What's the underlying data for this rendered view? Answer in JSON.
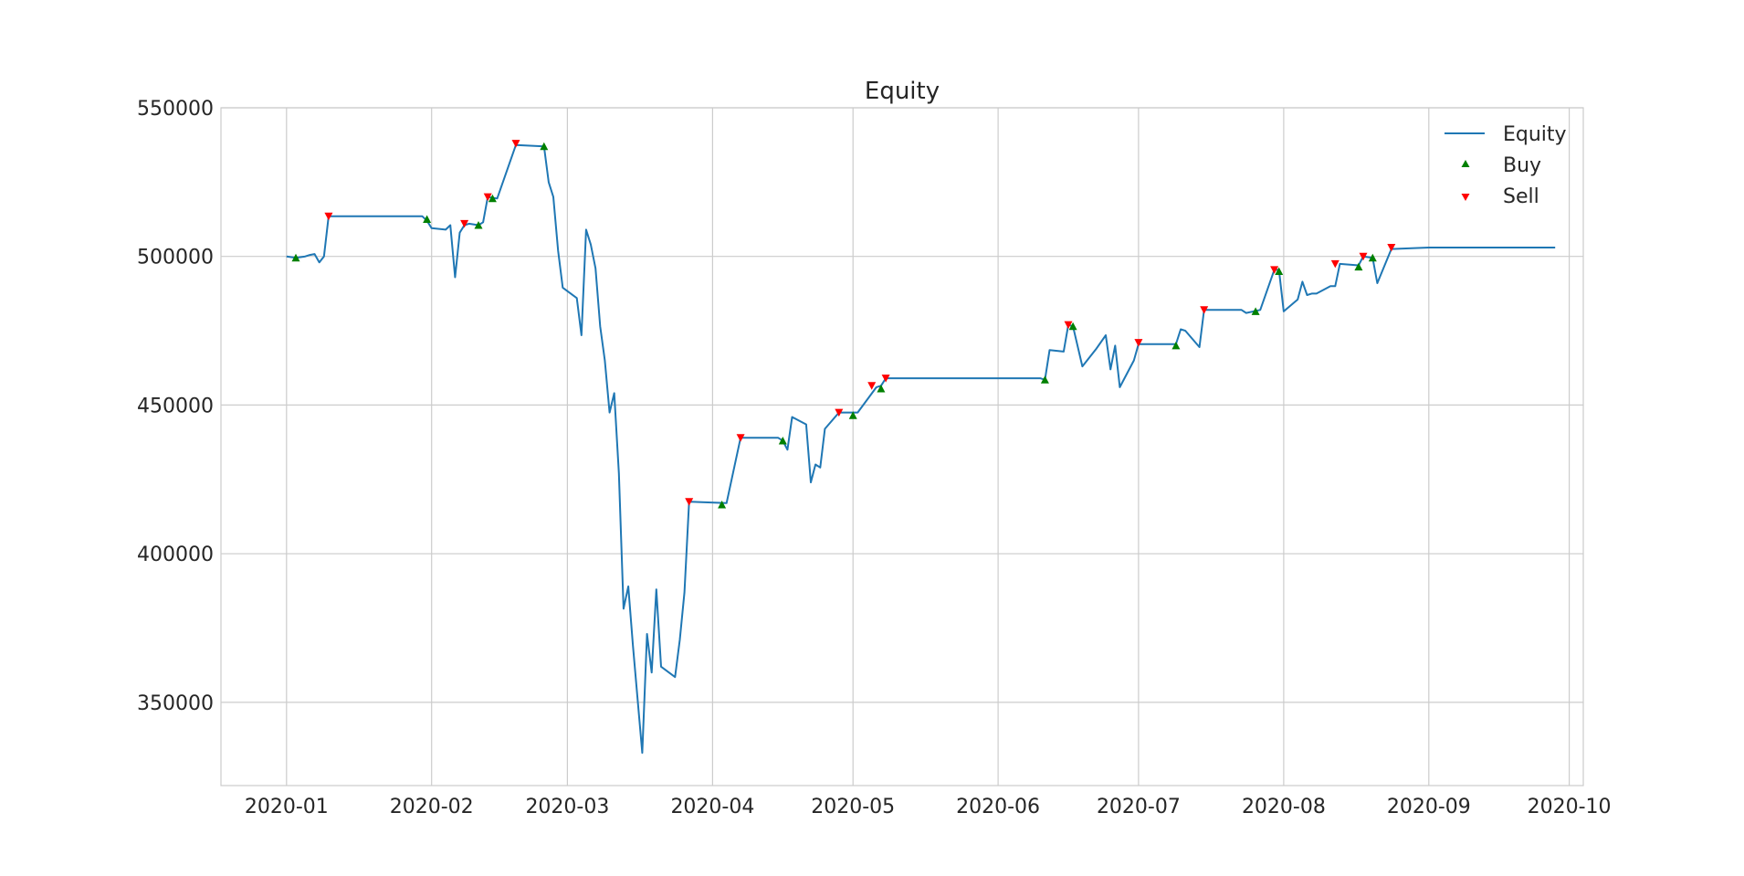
{
  "chart_data": {
    "type": "line",
    "title": "Equity",
    "xlabel": "",
    "ylabel": "",
    "x_scale": "time",
    "xlim": [
      "2019-12-18",
      "2020-10-04"
    ],
    "ylim": [
      322000,
      550000
    ],
    "x_ticks": [
      "2020-01-01",
      "2020-02-01",
      "2020-03-01",
      "2020-04-01",
      "2020-05-01",
      "2020-06-01",
      "2020-07-01",
      "2020-08-01",
      "2020-09-01",
      "2020-10-01"
    ],
    "x_tick_labels": [
      "2020-01",
      "2020-02",
      "2020-03",
      "2020-04",
      "2020-05",
      "2020-06",
      "2020-07",
      "2020-08",
      "2020-09",
      "2020-10"
    ],
    "y_ticks": [
      350000,
      400000,
      450000,
      500000,
      550000
    ],
    "y_tick_labels": [
      "350000",
      "400000",
      "450000",
      "500000",
      "550000"
    ],
    "grid": true,
    "legend": {
      "position": "top-right",
      "entries": [
        "Equity",
        "Buy",
        "Sell"
      ]
    },
    "colors": {
      "equity": "#1f77b4",
      "buy": "#008000",
      "sell": "#ff0000",
      "grid": "#cccccc"
    },
    "series": [
      {
        "name": "Equity",
        "style": "line",
        "points": [
          [
            "2020-01-01",
            500000
          ],
          [
            "2020-01-03",
            499500
          ],
          [
            "2020-01-05",
            500000
          ],
          [
            "2020-01-06",
            500500
          ],
          [
            "2020-01-07",
            500800
          ],
          [
            "2020-01-08",
            498000
          ],
          [
            "2020-01-09",
            500000
          ],
          [
            "2020-01-10",
            513500
          ],
          [
            "2020-01-30",
            513500
          ],
          [
            "2020-01-31",
            512000
          ],
          [
            "2020-02-01",
            509500
          ],
          [
            "2020-02-04",
            509000
          ],
          [
            "2020-02-05",
            510500
          ],
          [
            "2020-02-06",
            493000
          ],
          [
            "2020-02-07",
            508000
          ],
          [
            "2020-02-08",
            510500
          ],
          [
            "2020-02-09",
            511000
          ],
          [
            "2020-02-11",
            510500
          ],
          [
            "2020-02-12",
            511500
          ],
          [
            "2020-02-13",
            520000
          ],
          [
            "2020-02-15",
            519500
          ],
          [
            "2020-02-19",
            537500
          ],
          [
            "2020-02-25",
            537000
          ],
          [
            "2020-02-26",
            525000
          ],
          [
            "2020-02-27",
            520000
          ],
          [
            "2020-02-28",
            502000
          ],
          [
            "2020-02-29",
            489500
          ],
          [
            "2020-03-03",
            486000
          ],
          [
            "2020-03-04",
            473500
          ],
          [
            "2020-03-05",
            509000
          ],
          [
            "2020-03-06",
            504000
          ],
          [
            "2020-03-07",
            496000
          ],
          [
            "2020-03-08",
            476500
          ],
          [
            "2020-03-09",
            465000
          ],
          [
            "2020-03-10",
            447500
          ],
          [
            "2020-03-11",
            454000
          ],
          [
            "2020-03-12",
            427000
          ],
          [
            "2020-03-13",
            381500
          ],
          [
            "2020-03-14",
            389000
          ],
          [
            "2020-03-15",
            369000
          ],
          [
            "2020-03-17",
            333000
          ],
          [
            "2020-03-18",
            373000
          ],
          [
            "2020-03-19",
            360000
          ],
          [
            "2020-03-20",
            388000
          ],
          [
            "2020-03-21",
            362000
          ],
          [
            "2020-03-24",
            358500
          ],
          [
            "2020-03-25",
            371000
          ],
          [
            "2020-03-26",
            387000
          ],
          [
            "2020-03-27",
            417500
          ],
          [
            "2020-04-04",
            417000
          ],
          [
            "2020-04-07",
            439000
          ],
          [
            "2020-04-15",
            439000
          ],
          [
            "2020-04-16",
            438000
          ],
          [
            "2020-04-17",
            435000
          ],
          [
            "2020-04-18",
            446000
          ],
          [
            "2020-04-21",
            443500
          ],
          [
            "2020-04-22",
            424000
          ],
          [
            "2020-04-23",
            430000
          ],
          [
            "2020-04-24",
            429000
          ],
          [
            "2020-04-25",
            442000
          ],
          [
            "2020-04-28",
            447500
          ],
          [
            "2020-05-02",
            447500
          ],
          [
            "2020-05-06",
            456000
          ],
          [
            "2020-05-07",
            456500
          ],
          [
            "2020-05-08",
            459000
          ],
          [
            "2020-06-10",
            459000
          ],
          [
            "2020-06-11",
            458500
          ],
          [
            "2020-06-12",
            468500
          ],
          [
            "2020-06-15",
            468000
          ],
          [
            "2020-06-16",
            477000
          ],
          [
            "2020-06-17",
            476500
          ],
          [
            "2020-06-19",
            463000
          ],
          [
            "2020-06-22",
            469000
          ],
          [
            "2020-06-24",
            473500
          ],
          [
            "2020-06-25",
            462000
          ],
          [
            "2020-06-26",
            470000
          ],
          [
            "2020-06-27",
            456000
          ],
          [
            "2020-06-30",
            465000
          ],
          [
            "2020-07-01",
            470500
          ],
          [
            "2020-07-09",
            470500
          ],
          [
            "2020-07-10",
            475500
          ],
          [
            "2020-07-11",
            475000
          ],
          [
            "2020-07-14",
            469500
          ],
          [
            "2020-07-15",
            482000
          ],
          [
            "2020-07-23",
            482000
          ],
          [
            "2020-07-24",
            481000
          ],
          [
            "2020-07-27",
            482000
          ],
          [
            "2020-07-30",
            495500
          ],
          [
            "2020-07-31",
            495500
          ],
          [
            "2020-08-01",
            481500
          ],
          [
            "2020-08-04",
            485500
          ],
          [
            "2020-08-05",
            491500
          ],
          [
            "2020-08-06",
            487000
          ],
          [
            "2020-08-07",
            487500
          ],
          [
            "2020-08-08",
            487500
          ],
          [
            "2020-08-11",
            490000
          ],
          [
            "2020-08-12",
            490000
          ],
          [
            "2020-08-13",
            497500
          ],
          [
            "2020-08-17",
            497000
          ],
          [
            "2020-08-18",
            500000
          ],
          [
            "2020-08-20",
            499500
          ],
          [
            "2020-08-21",
            491000
          ],
          [
            "2020-08-24",
            502500
          ],
          [
            "2020-09-01",
            503000
          ],
          [
            "2020-09-28",
            503000
          ]
        ]
      },
      {
        "name": "Buy",
        "style": "marker-up",
        "points": [
          [
            "2020-01-03",
            499500
          ],
          [
            "2020-01-31",
            512500
          ],
          [
            "2020-02-11",
            510500
          ],
          [
            "2020-02-14",
            519500
          ],
          [
            "2020-02-25",
            537000
          ],
          [
            "2020-04-03",
            416500
          ],
          [
            "2020-04-16",
            438000
          ],
          [
            "2020-05-01",
            446500
          ],
          [
            "2020-05-07",
            455500
          ],
          [
            "2020-06-11",
            458500
          ],
          [
            "2020-06-17",
            476500
          ],
          [
            "2020-07-09",
            470000
          ],
          [
            "2020-07-26",
            481500
          ],
          [
            "2020-07-31",
            495000
          ],
          [
            "2020-08-17",
            496500
          ],
          [
            "2020-08-20",
            499500
          ]
        ]
      },
      {
        "name": "Sell",
        "style": "marker-down",
        "points": [
          [
            "2020-01-10",
            513500
          ],
          [
            "2020-02-08",
            511000
          ],
          [
            "2020-02-13",
            520000
          ],
          [
            "2020-02-19",
            538000
          ],
          [
            "2020-03-27",
            417500
          ],
          [
            "2020-04-07",
            439000
          ],
          [
            "2020-04-28",
            447500
          ],
          [
            "2020-05-05",
            456500
          ],
          [
            "2020-05-08",
            459000
          ],
          [
            "2020-06-16",
            477000
          ],
          [
            "2020-07-01",
            471000
          ],
          [
            "2020-07-15",
            482000
          ],
          [
            "2020-07-30",
            495500
          ],
          [
            "2020-08-12",
            497500
          ],
          [
            "2020-08-18",
            500000
          ],
          [
            "2020-08-24",
            503000
          ]
        ]
      }
    ]
  }
}
